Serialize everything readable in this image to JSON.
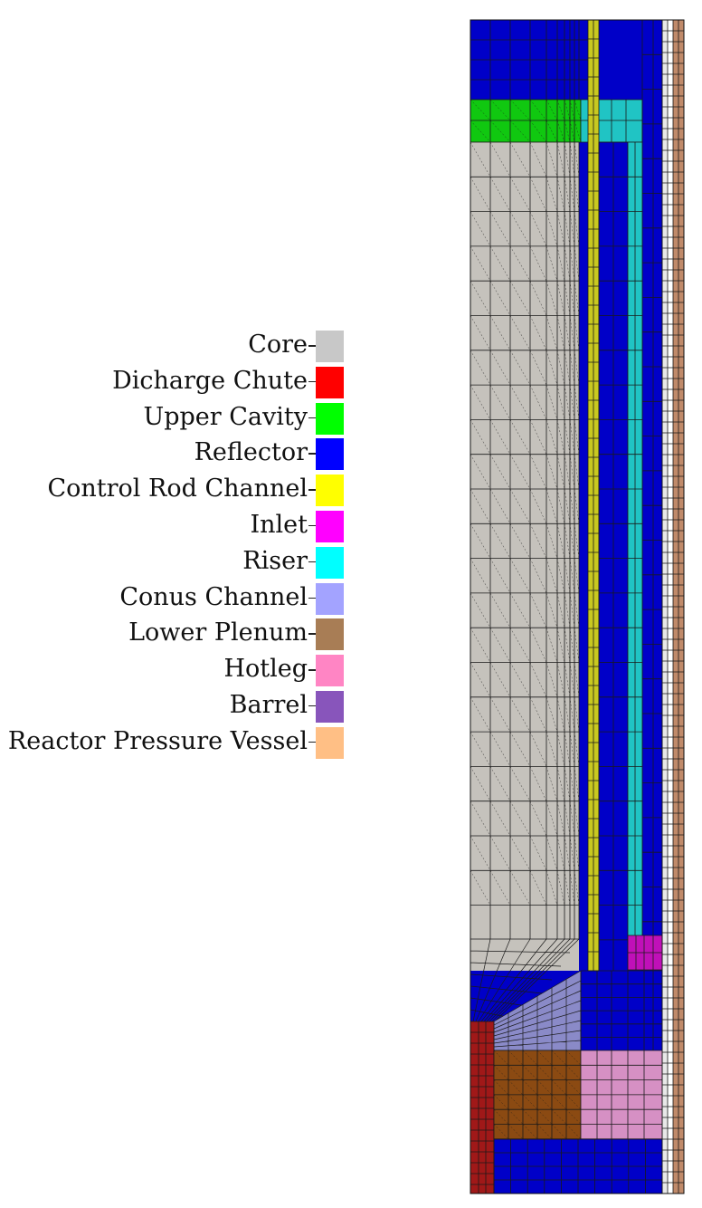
{
  "legend": [
    {
      "key": "core",
      "label": "Core",
      "color": "#c8c8c8"
    },
    {
      "key": "discharge-chute",
      "label": "Dicharge Chute",
      "color": "#ff0000"
    },
    {
      "key": "upper-cavity",
      "label": "Upper Cavity",
      "color": "#00ff00"
    },
    {
      "key": "reflector",
      "label": "Reflector",
      "color": "#0000ff"
    },
    {
      "key": "control-rod-channel",
      "label": "Control Rod Channel",
      "color": "#ffff00"
    },
    {
      "key": "inlet",
      "label": "Inlet",
      "color": "#ff00ff"
    },
    {
      "key": "riser",
      "label": "Riser",
      "color": "#00ffff"
    },
    {
      "key": "conus-channel",
      "label": "Conus Channel",
      "color": "#a3a3ff"
    },
    {
      "key": "lower-plenum",
      "label": "Lower Plenum",
      "color": "#a87d55"
    },
    {
      "key": "hotleg",
      "label": "Hotleg",
      "color": "#ff85c4"
    },
    {
      "key": "barrel",
      "label": "Barrel",
      "color": "#8855bb"
    },
    {
      "key": "reactor-pressure-vessel",
      "label": "Reactor Pressure Vessel",
      "color": "#ffbf85"
    }
  ],
  "mesh_colors": {
    "core": "#c5c2bc",
    "discharge_chute": "#a01818",
    "upper_cavity": "#10c810",
    "reflector": "#0000c8",
    "control_rod_channel": "#c8c820",
    "inlet": "#c010b8",
    "riser": "#20c4c4",
    "conus_channel": "#8a8ac8",
    "lower_plenum": "#8b4a12",
    "hotleg": "#d690c4",
    "barrel": "#e8e8e8",
    "reactor_pressure_vessel": "#c08a6a",
    "grid_line": "#1a1a1a"
  }
}
